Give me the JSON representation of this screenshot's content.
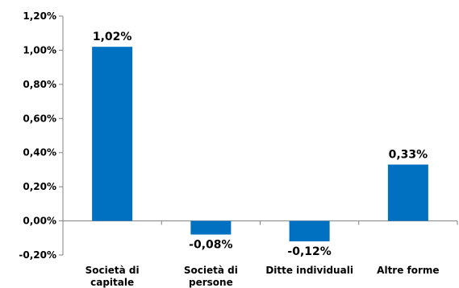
{
  "chart_data": {
    "type": "bar",
    "categories": [
      [
        "Società di",
        "capitale"
      ],
      [
        "Società di",
        "persone"
      ],
      [
        "Ditte individuali"
      ],
      [
        "Altre forme"
      ]
    ],
    "values": [
      1.02,
      -0.08,
      -0.12,
      0.33
    ],
    "data_labels": [
      "1,02%",
      "-0,08%",
      "-0,12%",
      "0,33%"
    ],
    "ylim": [
      -0.2,
      1.2
    ],
    "yticks": [
      -0.2,
      0.0,
      0.2,
      0.4,
      0.6,
      0.8,
      1.0,
      1.2
    ],
    "ytick_labels": [
      "-0,20%",
      "0,00%",
      "0,20%",
      "0,40%",
      "0,60%",
      "0,80%",
      "1,00%",
      "1,20%"
    ],
    "grid": false,
    "legend": "none",
    "bar_color": "#0070c0",
    "axis_color": "#808080"
  }
}
